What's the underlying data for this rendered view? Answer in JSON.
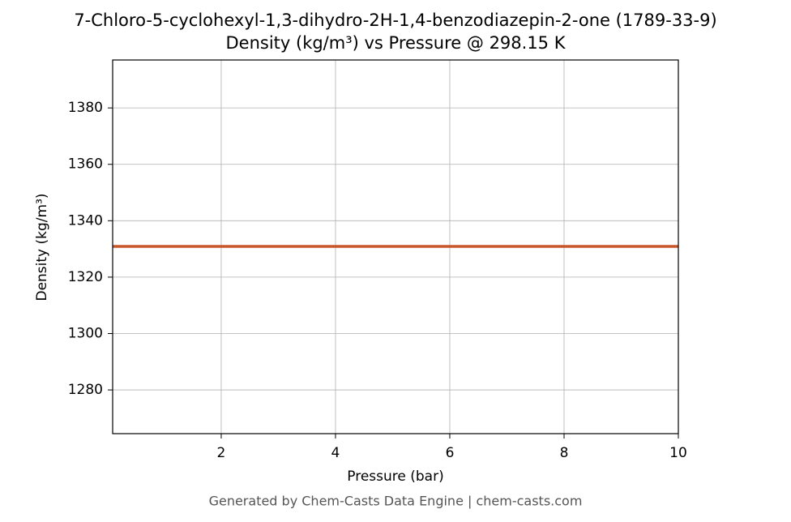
{
  "chart_data": {
    "type": "line",
    "title": "7-Chloro-5-cyclohexyl-1,3-dihydro-2H-1,4-benzodiazepin-2-one (1789-33-9)",
    "subtitle": "Density (kg/m³) vs Pressure @ 298.15 K",
    "x_label": "Pressure (bar)",
    "y_label": "Density (kg/m³)",
    "x": [
      0.1,
      10
    ],
    "series": [
      {
        "name": "Density",
        "color": "#c8572a",
        "values": [
          1330.9,
          1330.9
        ]
      }
    ],
    "xlim": [
      0.1,
      10
    ],
    "xticks": [
      2,
      4,
      6,
      8,
      10
    ],
    "ylim": [
      1264.5,
      1397
    ],
    "yticks": [
      1280,
      1300,
      1320,
      1340,
      1360,
      1380
    ],
    "grid": true,
    "footer": "Generated by Chem-Casts Data Engine | chem-casts.com"
  }
}
